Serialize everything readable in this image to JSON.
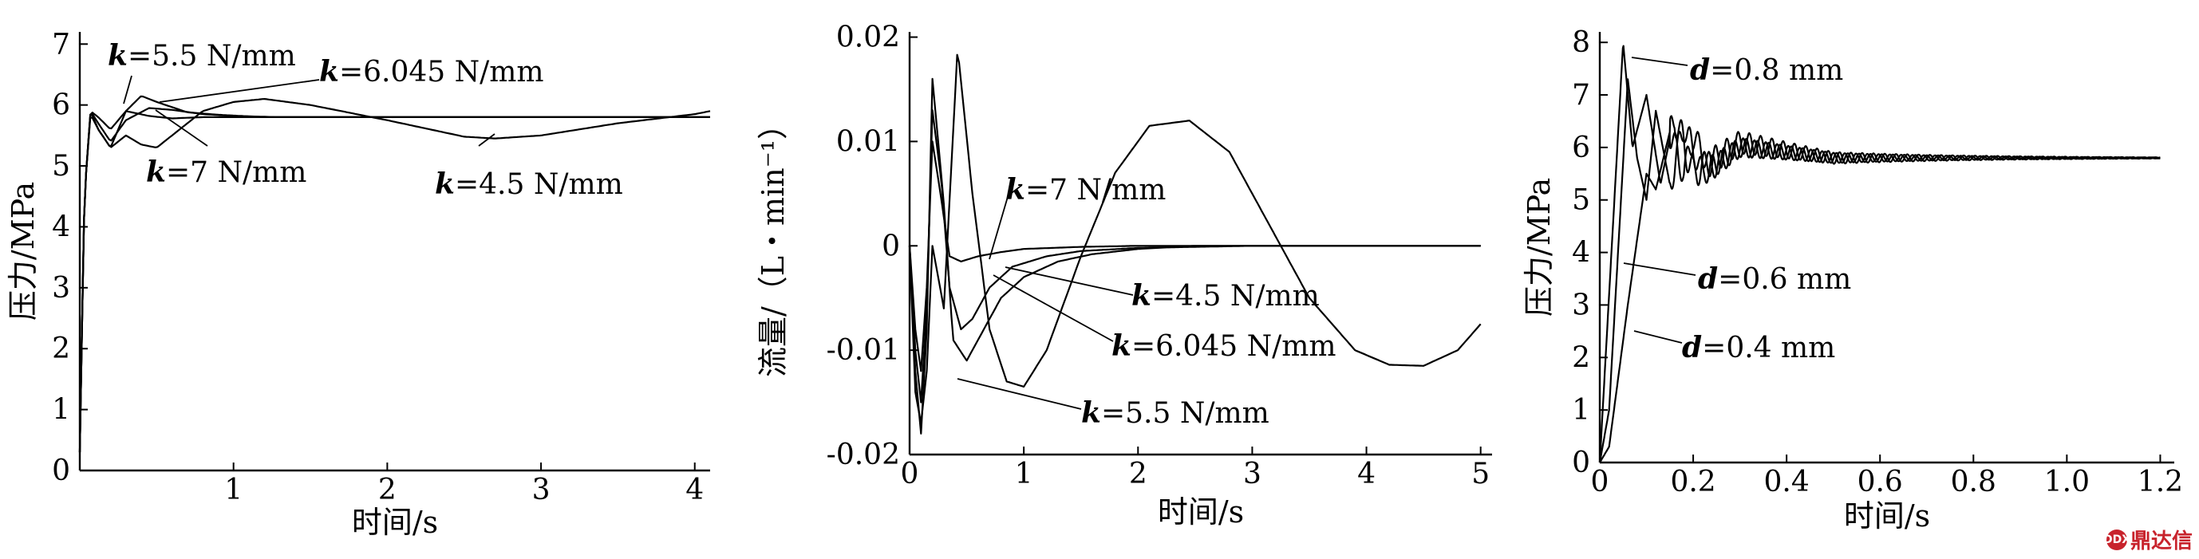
{
  "chart_data": [
    {
      "type": "line",
      "xlabel": "时间/s",
      "ylabel": "压力/MPa",
      "xlim": [
        0,
        4.1
      ],
      "ylim": [
        0,
        7.2
      ],
      "xticks": [
        "1",
        "2",
        "3",
        "4"
      ],
      "yticks": [
        "0",
        "1",
        "2",
        "3",
        "4",
        "5",
        "6",
        "7"
      ],
      "xtick_values": [
        1,
        2,
        3,
        4
      ],
      "ytick_values": [
        0,
        1,
        2,
        3,
        4,
        5,
        6,
        7
      ],
      "series": [
        {
          "name_prefix": "k",
          "name_suffix": "=7 N/mm",
          "x": [
            0,
            0.03,
            0.07,
            0.12,
            0.2,
            0.3,
            0.45,
            0.6,
            0.8,
            1.0,
            1.5,
            2,
            3,
            4,
            4.1
          ],
          "y": [
            0.3,
            4.5,
            5.9,
            5.8,
            5.6,
            5.9,
            5.82,
            5.78,
            5.8,
            5.8,
            5.8,
            5.8,
            5.8,
            5.8,
            5.8
          ]
        },
        {
          "name_prefix": "k",
          "name_suffix": "=6.045 N/mm",
          "x": [
            0,
            0.03,
            0.07,
            0.12,
            0.2,
            0.3,
            0.45,
            0.6,
            0.8,
            1.0,
            1.3,
            1.6,
            2,
            2.5,
            3,
            3.5,
            4,
            4.1
          ],
          "y": [
            0.3,
            4.5,
            5.9,
            5.7,
            5.4,
            5.75,
            5.95,
            5.92,
            5.85,
            5.82,
            5.8,
            5.8,
            5.8,
            5.8,
            5.8,
            5.8,
            5.8,
            5.8
          ]
        },
        {
          "name_prefix": "k",
          "name_suffix": "=5.5 N/mm",
          "x": [
            0,
            0.03,
            0.07,
            0.12,
            0.2,
            0.3,
            0.4,
            0.5,
            0.7,
            0.9,
            1.2,
            1.5,
            2,
            2.5,
            3,
            4,
            4.1
          ],
          "y": [
            0.3,
            4.5,
            5.9,
            5.6,
            5.3,
            5.9,
            6.15,
            6.05,
            5.88,
            5.84,
            5.8,
            5.8,
            5.8,
            5.8,
            5.8,
            5.8,
            5.8
          ]
        },
        {
          "name_prefix": "k",
          "name_suffix": "=4.5 N/mm",
          "x": [
            0,
            0.03,
            0.07,
            0.12,
            0.2,
            0.3,
            0.4,
            0.5,
            0.6,
            0.8,
            1.0,
            1.2,
            1.5,
            2,
            2.5,
            2.7,
            3,
            3.5,
            4,
            4.1
          ],
          "y": [
            0.3,
            4.5,
            5.85,
            5.6,
            5.3,
            5.5,
            5.35,
            5.3,
            5.5,
            5.9,
            6.05,
            6.1,
            6.0,
            5.75,
            5.48,
            5.45,
            5.5,
            5.7,
            5.85,
            5.9
          ]
        }
      ],
      "annotations": [
        {
          "prefix": "k",
          "suffix": "=5.5 N/mm"
        },
        {
          "prefix": "k",
          "suffix": "=6.045 N/mm"
        },
        {
          "prefix": "k",
          "suffix": "=7 N/mm"
        },
        {
          "prefix": "k",
          "suffix": "=4.5 N/mm"
        }
      ]
    },
    {
      "type": "line",
      "xlabel": "时间/s",
      "ylabel": "流量/（L・min⁻¹）",
      "xlim": [
        0,
        5.1
      ],
      "ylim": [
        -0.02,
        0.0205
      ],
      "xticks": [
        "0",
        "1",
        "2",
        "3",
        "4",
        "5"
      ],
      "yticks": [
        "-0.02",
        "-0.01",
        "0",
        "0.01",
        "0.02"
      ],
      "xtick_values": [
        0,
        1,
        2,
        3,
        4,
        5
      ],
      "ytick_values": [
        -0.02,
        -0.01,
        0,
        0.01,
        0.02
      ],
      "series": [
        {
          "name_prefix": "k",
          "name_suffix": "=7 N/mm",
          "x": [
            0,
            0.05,
            0.1,
            0.15,
            0.2,
            0.27,
            0.35,
            0.45,
            0.6,
            0.8,
            1.0,
            1.5,
            2,
            3,
            4,
            5
          ],
          "y": [
            0,
            -0.008,
            -0.012,
            -0.004,
            0.01,
            0.005,
            -0.001,
            -0.0015,
            -0.001,
            -0.0006,
            -0.0003,
            -0.0001,
            0,
            0,
            0,
            0
          ]
        },
        {
          "name_prefix": "k",
          "name_suffix": "=6.045 N/mm",
          "x": [
            0,
            0.05,
            0.1,
            0.15,
            0.2,
            0.28,
            0.35,
            0.45,
            0.55,
            0.7,
            0.9,
            1.2,
            1.5,
            2,
            3,
            4,
            5
          ],
          "y": [
            0,
            -0.01,
            -0.015,
            -0.006,
            0.013,
            0.006,
            -0.004,
            -0.008,
            -0.007,
            -0.004,
            -0.002,
            -0.001,
            -0.0005,
            -0.0002,
            0,
            0,
            0
          ]
        },
        {
          "name_prefix": "k",
          "name_suffix": "=5.5 N/mm",
          "x": [
            0,
            0.05,
            0.1,
            0.15,
            0.2,
            0.3,
            0.38,
            0.5,
            0.6,
            0.8,
            1.0,
            1.3,
            1.6,
            2,
            2.5,
            3,
            4,
            5
          ],
          "y": [
            0,
            -0.012,
            -0.018,
            -0.008,
            0.016,
            0.004,
            -0.009,
            -0.011,
            -0.009,
            -0.005,
            -0.003,
            -0.0015,
            -0.0008,
            -0.0003,
            0,
            0,
            0,
            0
          ]
        },
        {
          "name_prefix": "k",
          "name_suffix": "=4.5 N/mm",
          "x": [
            0,
            0.05,
            0.1,
            0.15,
            0.2,
            0.3,
            0.42,
            0.55,
            0.7,
            0.85,
            1.0,
            1.2,
            1.5,
            1.8,
            2.1,
            2.45,
            2.8,
            3.1,
            3.5,
            3.9,
            4.2,
            4.5,
            4.8,
            5.0
          ],
          "y": [
            0,
            -0.014,
            -0.017,
            -0.012,
            0,
            -0.006,
            0.019,
            0.005,
            -0.008,
            -0.013,
            -0.0135,
            -0.01,
            -0.001,
            0.007,
            0.0115,
            0.012,
            0.009,
            0.003,
            -0.005,
            -0.01,
            -0.0114,
            -0.0115,
            -0.01,
            -0.0075
          ]
        }
      ],
      "annotations": [
        {
          "prefix": "k",
          "suffix": "=7 N/mm"
        },
        {
          "prefix": "k",
          "suffix": "=4.5 N/mm"
        },
        {
          "prefix": "k",
          "suffix": "=6.045 N/mm"
        },
        {
          "prefix": "k",
          "suffix": "=5.5 N/mm"
        }
      ]
    },
    {
      "type": "line",
      "xlabel": "时间/s",
      "ylabel": "压力/MPa",
      "xlim": [
        0,
        1.23
      ],
      "ylim": [
        0,
        8.2
      ],
      "xticks": [
        "0",
        "0.2",
        "0.4",
        "0.6",
        "0.8",
        "1.0",
        "1.2"
      ],
      "yticks": [
        "0",
        "1",
        "2",
        "3",
        "4",
        "5",
        "6",
        "7",
        "8"
      ],
      "xtick_values": [
        0,
        0.2,
        0.4,
        0.6,
        0.8,
        1.0,
        1.2
      ],
      "ytick_values": [
        0,
        1,
        2,
        3,
        4,
        5,
        6,
        7,
        8
      ],
      "series": [
        {
          "name_prefix": "d",
          "name_suffix": "=0.8 mm",
          "x": [
            0,
            0.05,
            0.07,
            0.1,
            0.13,
            0.16,
            0.2,
            0.3,
            0.5,
            0.8,
            1.2
          ],
          "y": [
            0,
            8.0,
            6.0,
            7.0,
            5.3,
            6.6,
            5.5,
            6.1,
            5.8,
            5.8,
            5.8
          ],
          "ripple": 0.35
        },
        {
          "name_prefix": "d",
          "name_suffix": "=0.6 mm",
          "x": [
            0,
            0.02,
            0.06,
            0.08,
            0.1,
            0.12,
            0.15,
            0.18,
            0.22,
            0.3,
            0.5,
            0.8,
            1.2
          ],
          "y": [
            0,
            1.0,
            7.3,
            5.8,
            5.0,
            6.7,
            5.3,
            6.4,
            5.5,
            6.0,
            5.8,
            5.8,
            5.8
          ],
          "ripple": 0.3
        },
        {
          "name_prefix": "d",
          "name_suffix": "=0.4 mm",
          "x": [
            0,
            0.02,
            0.06,
            0.1,
            0.12,
            0.15,
            0.18,
            0.2,
            0.24,
            0.3,
            0.5,
            0.8,
            1.2
          ],
          "y": [
            0,
            0.3,
            3.0,
            5.5,
            5.2,
            6.3,
            5.5,
            6.2,
            5.6,
            6.0,
            5.8,
            5.8,
            5.8
          ],
          "ripple": 0.3
        }
      ],
      "annotations": [
        {
          "prefix": "d",
          "suffix": "=0.8 mm"
        },
        {
          "prefix": "d",
          "suffix": "=0.6 mm"
        },
        {
          "prefix": "d",
          "suffix": "=0.4 mm"
        }
      ]
    }
  ],
  "logo": {
    "text": "鼎达信",
    "mark": "DDX"
  }
}
